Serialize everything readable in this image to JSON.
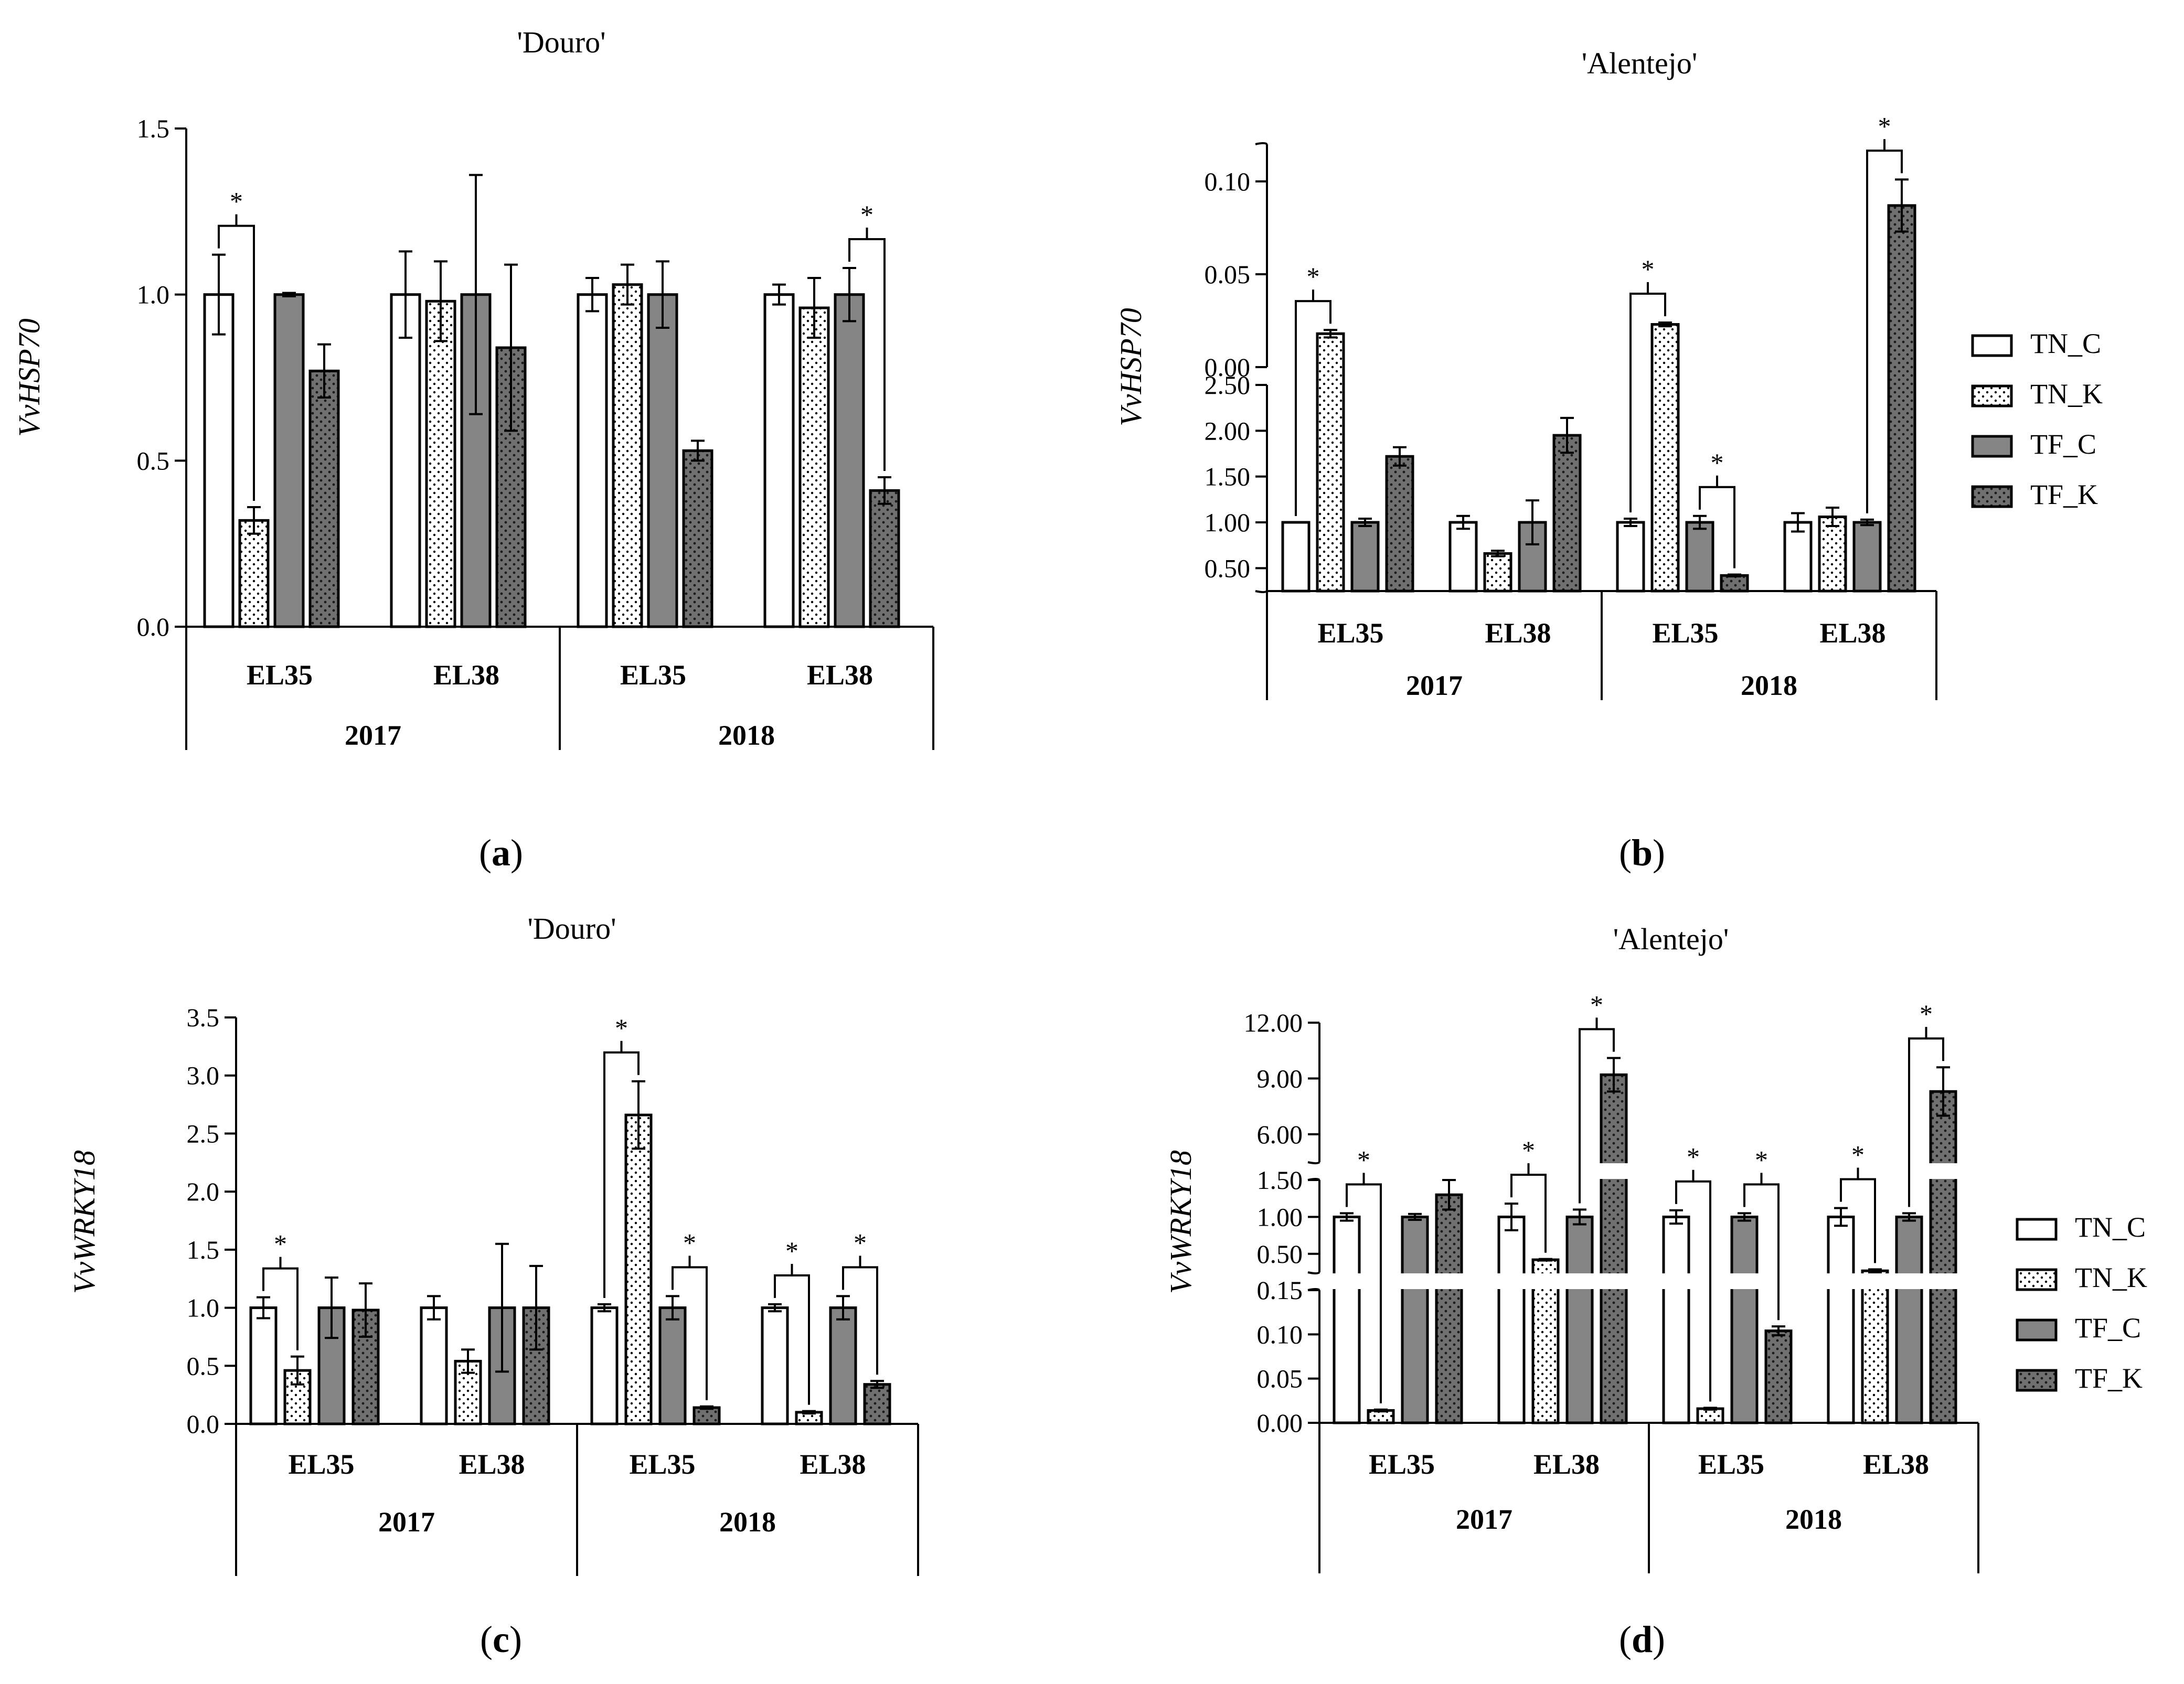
{
  "figure": {
    "legend_labels": [
      "TN_C",
      "TN_K",
      "TF_C",
      "TF_K"
    ],
    "colors": {
      "TN_C": "#ffffff",
      "TN_K": "#ffffff",
      "TF_C": "#858585",
      "TF_K": "#6e6e6e",
      "outline": "#000000"
    }
  },
  "chart_data": [
    {
      "id": "a",
      "type": "bar",
      "title": "'Douro'",
      "ylabel": "VvHSP70",
      "caption_letter": "a",
      "years": [
        "2017",
        "2018"
      ],
      "categories": [
        "EL35",
        "EL38",
        "EL35",
        "EL38"
      ],
      "ylim": [
        0,
        1.5
      ],
      "yticks": [
        0,
        0.5,
        1.0,
        1.5
      ],
      "ytick_labels": [
        "0.0",
        "0.5",
        "1.0",
        "1.5"
      ],
      "series": [
        {
          "name": "TN_C",
          "values": [
            1.0,
            1.0,
            1.0,
            1.0
          ],
          "errors": [
            0.12,
            0.13,
            0.05,
            0.03
          ]
        },
        {
          "name": "TN_K",
          "values": [
            0.32,
            0.98,
            1.03,
            0.96
          ],
          "errors": [
            0.04,
            0.12,
            0.06,
            0.09
          ]
        },
        {
          "name": "TF_C",
          "values": [
            1.0,
            1.0,
            1.0,
            1.0
          ],
          "errors": [
            0.005,
            0.36,
            0.1,
            0.08
          ]
        },
        {
          "name": "TF_K",
          "values": [
            0.77,
            0.84,
            0.53,
            0.41
          ],
          "errors": [
            0.08,
            0.25,
            0.03,
            0.04
          ]
        }
      ],
      "significance": [
        {
          "group": 0,
          "from": 0,
          "to": 1,
          "label": "*"
        },
        {
          "group": 3,
          "from": 2,
          "to": 3,
          "label": "*"
        }
      ]
    },
    {
      "id": "b",
      "type": "bar",
      "title": "'Alentejo'",
      "ylabel": "VvHSP70",
      "caption_letter": "b",
      "years": [
        "2017",
        "2018"
      ],
      "categories": [
        "EL35",
        "EL38",
        "EL35",
        "EL38"
      ],
      "broken_axis": {
        "lower": [
          0,
          0.12
        ],
        "upper": [
          0.25,
          2.5
        ]
      },
      "yticks_lower": [
        0,
        0.05,
        0.1
      ],
      "ytick_labels_lower": [
        "0.00",
        "0.05",
        "0.10"
      ],
      "yticks_upper": [
        0.5,
        1.0,
        1.5,
        2.0,
        2.5
      ],
      "ytick_labels_upper": [
        "0.50",
        "1.00",
        "1.50",
        "2.00",
        "2.50"
      ],
      "series": [
        {
          "name": "TN_C",
          "values": [
            1.0,
            1.0,
            1.0,
            1.0
          ],
          "errors": [
            0.0,
            0.07,
            0.04,
            0.1
          ]
        },
        {
          "name": "TN_K",
          "values": [
            0.018,
            0.66,
            0.023,
            1.06
          ],
          "errors": [
            0.002,
            0.03,
            0.001,
            0.1
          ]
        },
        {
          "name": "TF_C",
          "values": [
            1.0,
            1.0,
            1.0,
            1.0
          ],
          "errors": [
            0.04,
            0.24,
            0.07,
            0.03
          ]
        },
        {
          "name": "TF_K",
          "values": [
            1.72,
            1.95,
            0.42,
            0.087
          ],
          "errors": [
            0.1,
            0.19,
            0.01,
            0.014
          ]
        }
      ],
      "significance": [
        {
          "group": 0,
          "from": 0,
          "to": 1,
          "label": "*"
        },
        {
          "group": 2,
          "from": 0,
          "to": 1,
          "label": "*"
        },
        {
          "group": 2,
          "from": 2,
          "to": 3,
          "label": "*"
        },
        {
          "group": 3,
          "from": 2,
          "to": 3,
          "label": "*"
        }
      ]
    },
    {
      "id": "c",
      "type": "bar",
      "title": "'Douro'",
      "ylabel": "VvWRKY18",
      "caption_letter": "c",
      "years": [
        "2017",
        "2018"
      ],
      "categories": [
        "EL35",
        "EL38",
        "EL35",
        "EL38"
      ],
      "ylim": [
        0,
        3.5
      ],
      "yticks": [
        0,
        0.5,
        1.0,
        1.5,
        2.0,
        2.5,
        3.0,
        3.5
      ],
      "ytick_labels": [
        "0.0",
        "0.5",
        "1.0",
        "1.5",
        "2.0",
        "2.5",
        "3.0",
        "3.5"
      ],
      "series": [
        {
          "name": "TN_C",
          "values": [
            1.0,
            1.0,
            1.0,
            1.0
          ],
          "errors": [
            0.09,
            0.1,
            0.03,
            0.03
          ]
        },
        {
          "name": "TN_K",
          "values": [
            0.46,
            0.54,
            2.66,
            0.1
          ],
          "errors": [
            0.12,
            0.1,
            0.29,
            0.01
          ]
        },
        {
          "name": "TF_C",
          "values": [
            1.0,
            1.0,
            1.0,
            1.0
          ],
          "errors": [
            0.26,
            0.55,
            0.1,
            0.1
          ]
        },
        {
          "name": "TF_K",
          "values": [
            0.98,
            1.0,
            0.14,
            0.34
          ],
          "errors": [
            0.23,
            0.36,
            0.01,
            0.03
          ]
        }
      ],
      "significance": [
        {
          "group": 0,
          "from": 0,
          "to": 1,
          "label": "*"
        },
        {
          "group": 2,
          "from": 0,
          "to": 1,
          "label": "*"
        },
        {
          "group": 2,
          "from": 2,
          "to": 3,
          "label": "*"
        },
        {
          "group": 3,
          "from": 0,
          "to": 1,
          "label": "*"
        },
        {
          "group": 3,
          "from": 2,
          "to": 3,
          "label": "*"
        }
      ]
    },
    {
      "id": "d",
      "type": "bar",
      "title": "'Alentejo'",
      "ylabel": "VvWRKY18",
      "caption_letter": "d",
      "years": [
        "2017",
        "2018"
      ],
      "categories": [
        "EL35",
        "EL38",
        "EL35",
        "EL38"
      ],
      "broken_axis": {
        "lower": [
          0,
          0.15
        ],
        "upper": [
          0.25,
          1.5
        ],
        "top": [
          4.5,
          12.0
        ]
      },
      "yticks_lower": [
        0,
        0.05,
        0.1,
        0.15
      ],
      "ytick_labels_lower": [
        "0.00",
        "0.05",
        "0.10",
        "0.15"
      ],
      "yticks_upper": [
        0.5,
        1.0,
        1.5
      ],
      "ytick_labels_upper": [
        "0.50",
        "1.00",
        "1.50"
      ],
      "yticks_top": [
        6.0,
        9.0,
        12.0
      ],
      "ytick_labels_top": [
        "6.00",
        "9.00",
        "12.00"
      ],
      "series": [
        {
          "name": "TN_C",
          "values": [
            1.0,
            1.0,
            1.0,
            1.0
          ],
          "errors": [
            0.05,
            0.18,
            0.09,
            0.12
          ]
        },
        {
          "name": "TN_K",
          "values": [
            0.014,
            0.42,
            0.016,
            0.27
          ],
          "errors": [
            0.001,
            0.01,
            0.001,
            0.02
          ]
        },
        {
          "name": "TF_C",
          "values": [
            1.0,
            1.0,
            1.0,
            1.0
          ],
          "errors": [
            0.04,
            0.1,
            0.05,
            0.05
          ]
        },
        {
          "name": "TF_K",
          "values": [
            1.3,
            9.2,
            0.104,
            8.3
          ],
          "errors": [
            0.2,
            0.9,
            0.005,
            1.3
          ]
        }
      ],
      "significance": [
        {
          "group": 0,
          "from": 0,
          "to": 1,
          "label": "*"
        },
        {
          "group": 1,
          "from": 0,
          "to": 1,
          "label": "*"
        },
        {
          "group": 1,
          "from": 2,
          "to": 3,
          "label": "*"
        },
        {
          "group": 2,
          "from": 0,
          "to": 1,
          "label": "*"
        },
        {
          "group": 2,
          "from": 2,
          "to": 3,
          "label": "*"
        },
        {
          "group": 3,
          "from": 0,
          "to": 1,
          "label": "*"
        },
        {
          "group": 3,
          "from": 2,
          "to": 3,
          "label": "*"
        }
      ]
    }
  ]
}
